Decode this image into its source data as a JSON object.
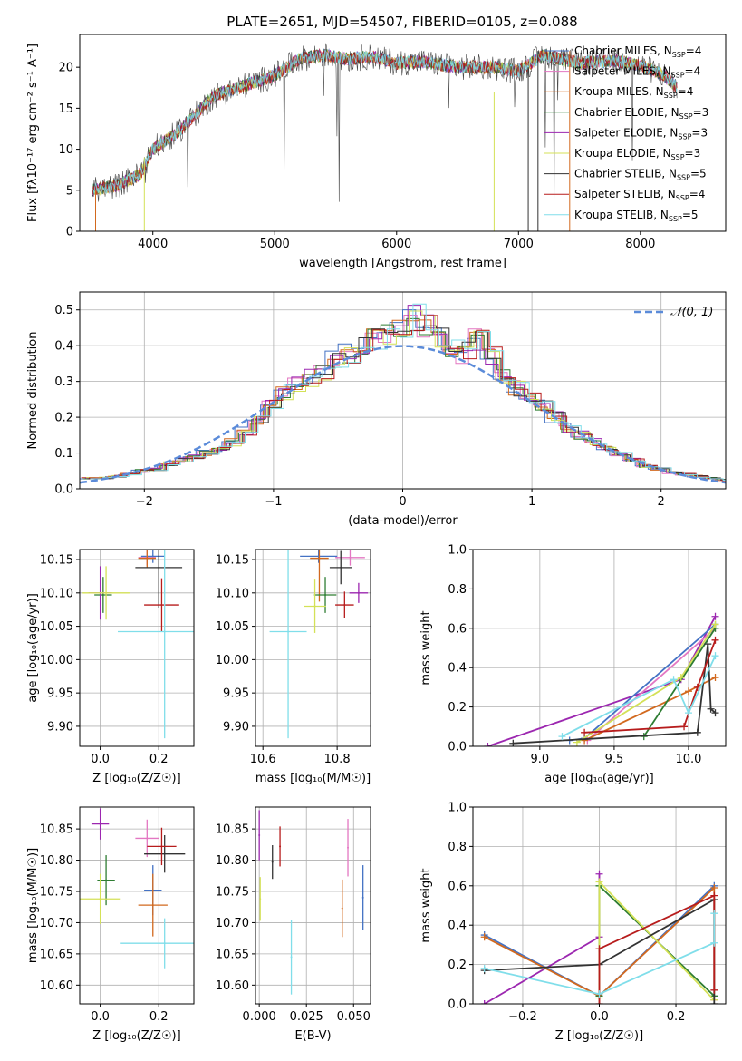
{
  "figure": {
    "title": "PLATE=2651, MJD=54507, FIBERID=0105, z=0.088"
  },
  "chart_data": [
    {
      "id": "spectrum",
      "type": "line",
      "xlabel": "wavelength [Angstrom, rest frame]",
      "ylabel": "Flux [f$_\\lambda$10$^{-17}$ erg cm$^{-2}$ s$^{-1}$ A$^{-1}$]",
      "ylabel_display": "Flux [fλ10⁻¹⁷ erg cm⁻² s⁻¹ A⁻¹]",
      "xlim": [
        3400,
        8700
      ],
      "ylim": [
        0,
        24
      ],
      "xticks": [
        4000,
        5000,
        6000,
        7000,
        8000
      ],
      "yticks": [
        0,
        5,
        10,
        15,
        20
      ],
      "legend_position": "top-right",
      "spectrum_shape": {
        "x": [
          3500,
          3700,
          3900,
          4000,
          4200,
          4400,
          4500,
          4800,
          5000,
          5200,
          5400,
          5600,
          5800,
          6000,
          6200,
          6500,
          6800,
          7000,
          7200,
          7500,
          7800,
          8000,
          8200,
          8300
        ],
        "y": [
          5,
          5.5,
          7,
          10,
          12,
          15,
          16.5,
          18,
          19,
          21,
          21.5,
          21,
          21.3,
          20.5,
          20.7,
          20,
          20,
          19.5,
          21.5,
          20.5,
          20.8,
          20.2,
          19,
          17.5
        ]
      },
      "series": [
        {
          "name": "Chabrier MILES, N$_{SSP}$=4",
          "label_main": "Chabrier MILES, N",
          "label_sub": "SSP",
          "label_tail": "=4",
          "color": "#4472c4"
        },
        {
          "name": "Salpeter MILES, N$_{SSP}$=4",
          "label_main": "Salpeter MILES, N",
          "label_sub": "SSP",
          "label_tail": "=4",
          "color": "#e377c2"
        },
        {
          "name": "Kroupa MILES, N$_{SSP}$=4",
          "label_main": "Kroupa MILES, N",
          "label_sub": "SSP",
          "label_tail": "=4",
          "color": "#d2691e"
        },
        {
          "name": "Chabrier ELODIE, N$_{SSP}$=3",
          "label_main": "Chabrier ELODIE, N",
          "label_sub": "SSP",
          "label_tail": "=3",
          "color": "#2e7d32"
        },
        {
          "name": "Salpeter ELODIE, N$_{SSP}$=3",
          "label_main": "Salpeter ELODIE, N",
          "label_sub": "SSP",
          "label_tail": "=3",
          "color": "#9c27b0"
        },
        {
          "name": "Kroupa ELODIE, N$_{SSP}$=3",
          "label_main": "Kroupa ELODIE, N",
          "label_sub": "SSP",
          "label_tail": "=3",
          "color": "#d4e157"
        },
        {
          "name": "Chabrier STELIB, N$_{SSP}$=5",
          "label_main": "Chabrier STELIB, N",
          "label_sub": "SSP",
          "label_tail": "=5",
          "color": "#333333"
        },
        {
          "name": "Salpeter STELIB, N$_{SSP}$=4",
          "label_main": "Salpeter STELIB, N",
          "label_sub": "SSP",
          "label_tail": "=4",
          "color": "#b71c1c"
        },
        {
          "name": "Kroupa STELIB, N$_{SSP}$=5",
          "label_main": "Kroupa STELIB, N",
          "label_sub": "SSP",
          "label_tail": "=5",
          "color": "#80deea"
        }
      ]
    },
    {
      "id": "residuals",
      "type": "line",
      "xlabel": "(data-model)/error",
      "ylabel": "Normed distribution",
      "xlim": [
        -2.5,
        2.5
      ],
      "ylim": [
        0,
        0.55
      ],
      "xticks": [
        -2,
        -1,
        0,
        1,
        2
      ],
      "yticks": [
        0.0,
        0.1,
        0.2,
        0.3,
        0.4,
        0.5
      ],
      "grid": true,
      "legend_position": "top-right",
      "reference_curve": {
        "name": "$\\mathcal{N}(0,1)$",
        "label_display": "𝒩(0, 1)",
        "color": "#5b8bd9",
        "style": "dashed"
      },
      "bin_centers": [
        -2.45,
        -2.35,
        -2.25,
        -2.15,
        -2.05,
        -1.95,
        -1.85,
        -1.75,
        -1.65,
        -1.55,
        -1.45,
        -1.35,
        -1.25,
        -1.15,
        -1.05,
        -0.95,
        -0.85,
        -0.75,
        -0.65,
        -0.55,
        -0.45,
        -0.35,
        -0.25,
        -0.15,
        -0.05,
        0.05,
        0.15,
        0.25,
        0.35,
        0.45,
        0.55,
        0.65,
        0.75,
        0.85,
        0.95,
        1.05,
        1.15,
        1.25,
        1.35,
        1.45,
        1.55,
        1.65,
        1.75,
        1.85,
        1.95,
        2.05,
        2.15,
        2.25,
        2.35,
        2.45
      ],
      "histogram_envelope": [
        0.03,
        0.03,
        0.035,
        0.04,
        0.05,
        0.055,
        0.07,
        0.08,
        0.09,
        0.1,
        0.11,
        0.13,
        0.16,
        0.19,
        0.23,
        0.27,
        0.29,
        0.31,
        0.33,
        0.36,
        0.38,
        0.4,
        0.42,
        0.44,
        0.46,
        0.48,
        0.45,
        0.42,
        0.4,
        0.38,
        0.42,
        0.37,
        0.32,
        0.28,
        0.26,
        0.23,
        0.2,
        0.17,
        0.15,
        0.13,
        0.11,
        0.095,
        0.08,
        0.065,
        0.055,
        0.045,
        0.04,
        0.035,
        0.03,
        0.025
      ]
    },
    {
      "id": "z-vs-age",
      "type": "scatter",
      "xlabel": "Z [log$_{10}$($Z/Z_\\odot$)]",
      "xlabel_display": "Z [log₁₀(Z/Z☉)]",
      "ylabel": "age  [log$_{10}$($age/yr$)]",
      "ylabel_display": "age  [log₁₀(age/yr)]",
      "xlim": [
        -0.07,
        0.32
      ],
      "ylim": [
        9.87,
        10.165
      ],
      "xticks": [
        0.0,
        0.2
      ],
      "yticks": [
        9.9,
        9.95,
        10.0,
        10.05,
        10.1,
        10.15
      ],
      "grid": true,
      "points": [
        {
          "x": 0.18,
          "xerr": 0.04,
          "y": 10.155,
          "yerr": 0.01,
          "color": "#4472c4"
        },
        {
          "x": 0.16,
          "xerr": 0.03,
          "y": 10.153,
          "yerr": 0.012,
          "color": "#e377c2"
        },
        {
          "x": 0.16,
          "xerr": 0.03,
          "y": 10.152,
          "yerr": 0.014,
          "color": "#d2691e"
        },
        {
          "x": 0.01,
          "xerr": 0.03,
          "y": 10.097,
          "yerr": 0.027,
          "color": "#2e7d32"
        },
        {
          "x": 0.0,
          "xerr": 0.04,
          "y": 10.1,
          "yerr": 0.04,
          "color": "#9c27b0"
        },
        {
          "x": 0.02,
          "xerr": 0.08,
          "y": 10.1,
          "yerr": 0.04,
          "color": "#d4e157"
        },
        {
          "x": 0.2,
          "xerr": 0.08,
          "y": 10.138,
          "yerr": 0.06,
          "color": "#333333"
        },
        {
          "x": 0.21,
          "xerr": 0.06,
          "y": 10.082,
          "yerr": 0.04,
          "color": "#b71c1c"
        },
        {
          "x": 0.22,
          "xerr": 0.16,
          "y": 10.042,
          "yerr": 0.16,
          "color": "#80deea"
        }
      ]
    },
    {
      "id": "mass-vs-age",
      "type": "scatter",
      "xlabel": "mass [log$_{10}$($M/M_\\odot$)]",
      "xlabel_display": "mass [log₁₀(M/M☉)]",
      "xlim": [
        10.58,
        10.89
      ],
      "ylim": [
        9.87,
        10.165
      ],
      "xticks": [
        10.6,
        10.8
      ],
      "yticks": [
        9.9,
        9.95,
        10.0,
        10.05,
        10.1,
        10.15
      ],
      "grid": true,
      "points": [
        {
          "x": 10.75,
          "xerr": 0.05,
          "y": 10.155,
          "yerr": 0.01,
          "color": "#4472c4"
        },
        {
          "x": 10.835,
          "xerr": 0.04,
          "y": 10.153,
          "yerr": 0.012,
          "color": "#e377c2"
        },
        {
          "x": 10.752,
          "xerr": 0.025,
          "y": 10.152,
          "yerr": 0.065,
          "color": "#d2691e"
        },
        {
          "x": 10.768,
          "xerr": 0.03,
          "y": 10.097,
          "yerr": 0.027,
          "color": "#2e7d32"
        },
        {
          "x": 10.858,
          "xerr": 0.025,
          "y": 10.1,
          "yerr": 0.015,
          "color": "#9c27b0"
        },
        {
          "x": 10.74,
          "xerr": 0.03,
          "y": 10.08,
          "yerr": 0.04,
          "color": "#d4e157"
        },
        {
          "x": 10.81,
          "xerr": 0.03,
          "y": 10.138,
          "yerr": 0.025,
          "color": "#333333"
        },
        {
          "x": 10.82,
          "xerr": 0.025,
          "y": 10.082,
          "yerr": 0.02,
          "color": "#b71c1c"
        },
        {
          "x": 10.668,
          "xerr": 0.05,
          "y": 10.042,
          "yerr": 0.16,
          "color": "#80deea"
        }
      ]
    },
    {
      "id": "age-vs-weight",
      "type": "line",
      "xlabel": "age  [log$_{10}$($age/yr$)]",
      "xlabel_display": "age  [log₁₀(age/yr)]",
      "ylabel": "mass weight",
      "xlim": [
        8.55,
        10.25
      ],
      "ylim": [
        0,
        1.0
      ],
      "xticks": [
        9.0,
        9.5,
        10.0
      ],
      "yticks": [
        0.0,
        0.2,
        0.4,
        0.6,
        0.8,
        1.0
      ],
      "grid": true,
      "series": [
        {
          "color": "#9c27b0",
          "x": [
            8.65,
            9.95,
            10.18
          ],
          "y": [
            0.0,
            0.34,
            0.66
          ]
        },
        {
          "color": "#4472c4",
          "x": [
            9.2,
            9.3,
            10.18
          ],
          "y": [
            0.03,
            0.04,
            0.62
          ]
        },
        {
          "color": "#e377c2",
          "x": [
            9.32,
            10.18
          ],
          "y": [
            0.03,
            0.6
          ]
        },
        {
          "color": "#d2691e",
          "x": [
            9.3,
            10.0,
            10.18
          ],
          "y": [
            0.03,
            0.28,
            0.35
          ]
        },
        {
          "color": "#2e7d32",
          "x": [
            9.7,
            10.18
          ],
          "y": [
            0.05,
            0.6
          ]
        },
        {
          "color": "#d4e157",
          "x": [
            9.25,
            9.95,
            10.18
          ],
          "y": [
            0.02,
            0.35,
            0.62
          ]
        },
        {
          "color": "#333333",
          "x": [
            8.82,
            10.06,
            10.13,
            10.15,
            10.18
          ],
          "y": [
            0.015,
            0.07,
            0.52,
            0.19,
            0.17
          ]
        },
        {
          "color": "#b71c1c",
          "x": [
            9.3,
            9.97,
            10.06,
            10.18
          ],
          "y": [
            0.07,
            0.1,
            0.3,
            0.54
          ]
        },
        {
          "color": "#80deea",
          "x": [
            9.15,
            9.9,
            10.0,
            10.18
          ],
          "y": [
            0.05,
            0.34,
            0.17,
            0.46
          ]
        }
      ]
    },
    {
      "id": "z-vs-mass",
      "type": "scatter",
      "xlabel": "Z [log$_{10}$($Z/Z_\\odot$)]",
      "xlabel_display": "Z [log₁₀(Z/Z☉)]",
      "ylabel": "mass [log$_{10}$($M/M_\\odot$)]",
      "ylabel_display": "mass [log₁₀(M/M☉)]",
      "xlim": [
        -0.07,
        0.32
      ],
      "ylim": [
        10.57,
        10.885
      ],
      "xticks": [
        0.0,
        0.2
      ],
      "yticks": [
        10.6,
        10.65,
        10.7,
        10.75,
        10.8,
        10.85
      ],
      "grid": true,
      "points": [
        {
          "x": 0.18,
          "xerr": 0.03,
          "y": 10.752,
          "yerr": 0.04,
          "color": "#4472c4"
        },
        {
          "x": 0.16,
          "xerr": 0.04,
          "y": 10.835,
          "yerr": 0.03,
          "color": "#e377c2"
        },
        {
          "x": 0.18,
          "xerr": 0.05,
          "y": 10.728,
          "yerr": 0.05,
          "color": "#d2691e"
        },
        {
          "x": 0.02,
          "xerr": 0.03,
          "y": 10.768,
          "yerr": 0.04,
          "color": "#2e7d32"
        },
        {
          "x": 0.0,
          "xerr": 0.03,
          "y": 10.858,
          "yerr": 0.025,
          "color": "#9c27b0"
        },
        {
          "x": 0.0,
          "xerr": 0.07,
          "y": 10.738,
          "yerr": 0.04,
          "color": "#d4e157"
        },
        {
          "x": 0.22,
          "xerr": 0.07,
          "y": 10.81,
          "yerr": 0.03,
          "color": "#333333"
        },
        {
          "x": 0.21,
          "xerr": 0.05,
          "y": 10.822,
          "yerr": 0.03,
          "color": "#b71c1c"
        },
        {
          "x": 0.22,
          "xerr": 0.15,
          "y": 10.667,
          "yerr": 0.04,
          "color": "#80deea"
        }
      ]
    },
    {
      "id": "ebv-vs-mass",
      "type": "scatter",
      "xlabel": "E(B-V)",
      "xlim": [
        -0.002,
        0.059
      ],
      "ylim": [
        10.57,
        10.885
      ],
      "xticks": [
        0.0,
        0.025,
        0.05
      ],
      "xtick_labels": [
        "0.000",
        "0.025",
        "0.050"
      ],
      "yticks": [
        10.6,
        10.65,
        10.7,
        10.75,
        10.8,
        10.85
      ],
      "grid": true,
      "points": [
        {
          "x": 0.055,
          "y": 10.74,
          "yerr": 0.052,
          "color": "#4472c4"
        },
        {
          "x": 0.047,
          "y": 10.82,
          "yerr": 0.046,
          "color": "#e377c2"
        },
        {
          "x": 0.044,
          "y": 10.723,
          "yerr": 0.046,
          "color": "#d2691e"
        },
        {
          "x": 0.0,
          "y": 10.84,
          "yerr": 0.04,
          "color": "#9c27b0"
        },
        {
          "x": 0.0005,
          "y": 10.738,
          "yerr": 0.035,
          "color": "#d4e157"
        },
        {
          "x": 0.007,
          "y": 10.797,
          "yerr": 0.027,
          "color": "#333333"
        },
        {
          "x": 0.011,
          "y": 10.822,
          "yerr": 0.032,
          "color": "#b71c1c"
        },
        {
          "x": 0.017,
          "y": 10.645,
          "yerr": 0.06,
          "color": "#80deea"
        }
      ]
    },
    {
      "id": "z-vs-weight",
      "type": "line",
      "xlabel": "Z [log$_{10}$($Z/Z_\\odot$)]",
      "xlabel_display": "Z [log₁₀(Z/Z☉)]",
      "ylabel": "mass weight",
      "xlim": [
        -0.33,
        0.33
      ],
      "ylim": [
        0,
        1.0
      ],
      "xticks": [
        -0.2,
        0.0,
        0.2
      ],
      "yticks": [
        0.0,
        0.2,
        0.4,
        0.6,
        0.8,
        1.0
      ],
      "grid": true,
      "series": [
        {
          "color": "#9c27b0",
          "x": [
            -0.3,
            0.0,
            0.0
          ],
          "y": [
            0.0,
            0.34,
            0.66
          ]
        },
        {
          "color": "#4472c4",
          "x": [
            -0.3,
            0.0,
            0.3
          ],
          "y": [
            0.35,
            0.04,
            0.6
          ]
        },
        {
          "color": "#d2691e",
          "x": [
            -0.3,
            0.0,
            0.3,
            0.3
          ],
          "y": [
            0.34,
            0.04,
            0.59,
            0.02
          ]
        },
        {
          "color": "#2e7d32",
          "x": [
            0.0,
            0.0,
            0.3
          ],
          "y": [
            0.04,
            0.6,
            0.04
          ]
        },
        {
          "color": "#d4e157",
          "x": [
            0.0,
            0.0,
            0.3
          ],
          "y": [
            0.03,
            0.62,
            0.02
          ]
        },
        {
          "color": "#333333",
          "x": [
            -0.3,
            0.0,
            0.3,
            0.3
          ],
          "y": [
            0.17,
            0.2,
            0.53,
            0.0
          ]
        },
        {
          "color": "#b71c1c",
          "x": [
            0.0,
            0.0,
            0.3,
            0.3
          ],
          "y": [
            0.0,
            0.28,
            0.55,
            0.07
          ]
        },
        {
          "color": "#80deea",
          "x": [
            -0.3,
            0.0,
            0.3,
            0.3
          ],
          "y": [
            0.18,
            0.05,
            0.31,
            0.46
          ]
        }
      ]
    }
  ]
}
